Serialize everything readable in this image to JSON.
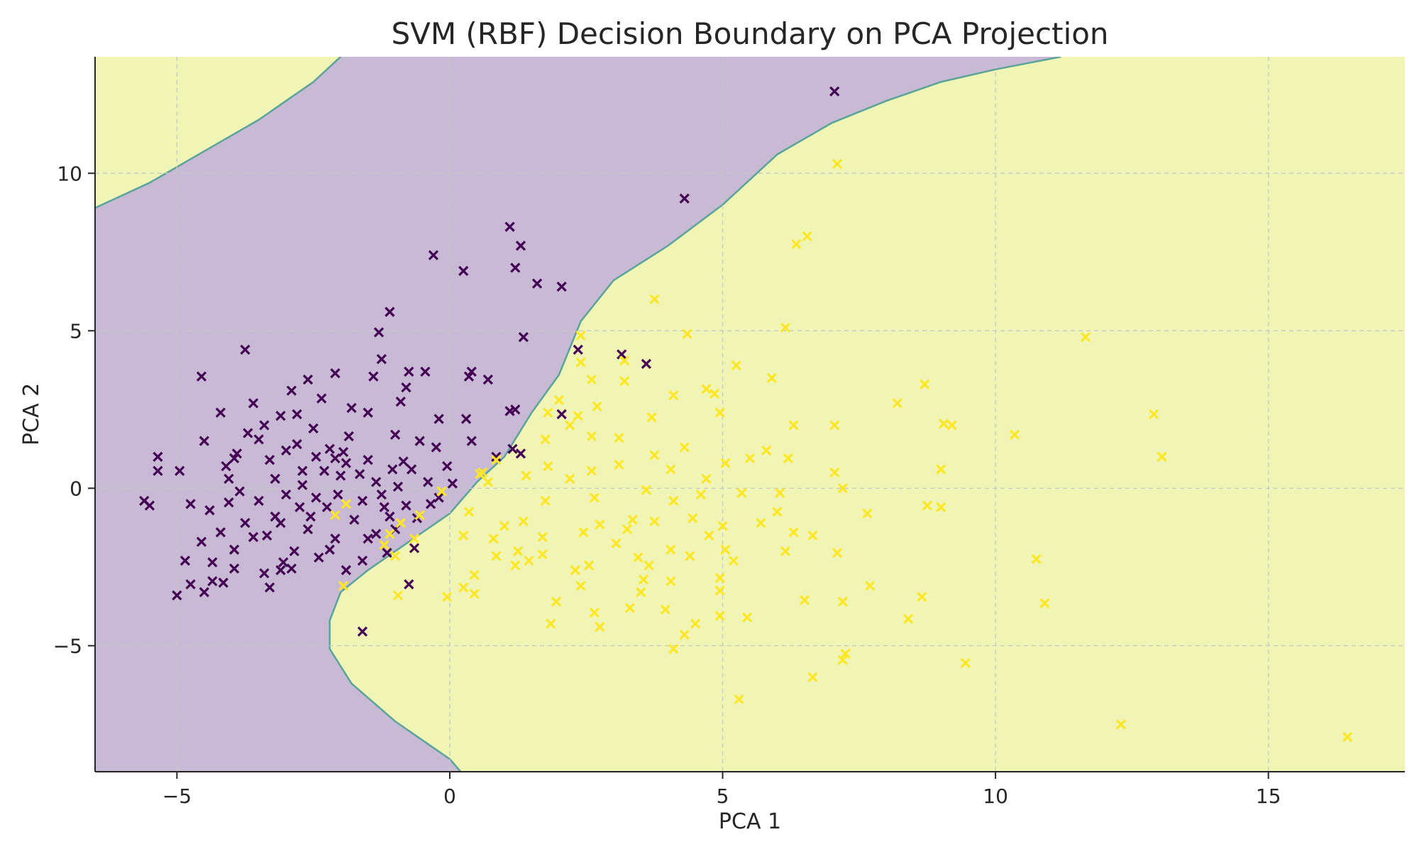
{
  "chart_data": {
    "type": "scatter",
    "title": "SVM (RBF) Decision Boundary on PCA Projection",
    "xlabel": "PCA 1",
    "ylabel": "PCA 2",
    "xlim": [
      -6.5,
      17.5
    ],
    "ylim": [
      -9.0,
      13.7
    ],
    "xticks": [
      -5,
      0,
      5,
      10,
      15
    ],
    "yticks": [
      -5,
      0,
      5,
      10
    ],
    "xtick_labels": [
      "−5",
      "0",
      "5",
      "10",
      "15"
    ],
    "ytick_labels": [
      "−5",
      "0",
      "5",
      "10"
    ],
    "grid": true,
    "marker": "x",
    "colors": {
      "class_0_marker": "#440154",
      "class_1_marker": "#fde725",
      "class_0_region": "#c8b9d4",
      "class_1_region": "#f0f5b6",
      "boundary": "#5aa39a",
      "grid": "#c8c8c8",
      "axes": "#262626"
    },
    "decision_boundary": {
      "upper_left_curve": [
        [
          -6.5,
          8.9
        ],
        [
          -5.5,
          9.7
        ],
        [
          -4.5,
          10.7
        ],
        [
          -3.5,
          11.7
        ],
        [
          -2.5,
          12.9
        ],
        [
          -2.0,
          13.7
        ]
      ],
      "main_curve": [
        [
          11.2,
          13.7
        ],
        [
          10.0,
          13.3
        ],
        [
          9.0,
          12.9
        ],
        [
          8.0,
          12.3
        ],
        [
          7.0,
          11.6
        ],
        [
          6.0,
          10.6
        ],
        [
          5.0,
          9.0
        ],
        [
          4.0,
          7.7
        ],
        [
          3.0,
          6.6
        ],
        [
          2.4,
          5.3
        ],
        [
          2.0,
          3.6
        ],
        [
          1.5,
          2.4
        ],
        [
          1.0,
          1.0
        ],
        [
          0.5,
          0.2
        ],
        [
          0.0,
          -0.8
        ],
        [
          -0.5,
          -1.4
        ],
        [
          -1.5,
          -2.6
        ],
        [
          -2.0,
          -3.3
        ],
        [
          -2.2,
          -4.2
        ],
        [
          -2.2,
          -5.1
        ],
        [
          -1.8,
          -6.2
        ],
        [
          -1.0,
          -7.4
        ],
        [
          0.0,
          -8.6
        ],
        [
          0.2,
          -9.0
        ]
      ]
    },
    "series": [
      {
        "class": 0,
        "points": [
          [
            7.05,
            12.6
          ],
          [
            4.3,
            9.2
          ],
          [
            1.1,
            8.3
          ],
          [
            1.3,
            7.7
          ],
          [
            -0.3,
            7.4
          ],
          [
            0.25,
            6.9
          ],
          [
            1.2,
            7.0
          ],
          [
            1.6,
            6.5
          ],
          [
            2.05,
            6.4
          ],
          [
            -1.1,
            5.6
          ],
          [
            -1.3,
            4.95
          ],
          [
            1.35,
            4.8
          ],
          [
            -3.75,
            4.4
          ],
          [
            2.35,
            4.4
          ],
          [
            3.15,
            4.25
          ],
          [
            3.6,
            3.95
          ],
          [
            -1.25,
            4.1
          ],
          [
            -4.55,
            3.55
          ],
          [
            -2.6,
            3.45
          ],
          [
            -2.1,
            3.65
          ],
          [
            -1.4,
            3.55
          ],
          [
            -0.75,
            3.7
          ],
          [
            -0.45,
            3.7
          ],
          [
            0.4,
            3.7
          ],
          [
            0.7,
            3.45
          ],
          [
            0.35,
            3.55
          ],
          [
            -2.9,
            3.1
          ],
          [
            -3.6,
            2.7
          ],
          [
            -3.1,
            2.3
          ],
          [
            -4.2,
            2.4
          ],
          [
            -1.8,
            2.55
          ],
          [
            -0.9,
            2.75
          ],
          [
            -0.8,
            3.2
          ],
          [
            1.1,
            2.45
          ],
          [
            1.2,
            2.5
          ],
          [
            2.05,
            2.35
          ],
          [
            0.3,
            2.2
          ],
          [
            -0.2,
            2.2
          ],
          [
            -1.5,
            2.4
          ],
          [
            -2.5,
            1.9
          ],
          [
            -3.4,
            2.0
          ],
          [
            -4.5,
            1.5
          ],
          [
            -3.9,
            1.1
          ],
          [
            -5.35,
            1.0
          ],
          [
            -5.35,
            0.55
          ],
          [
            -4.95,
            0.55
          ],
          [
            -4.1,
            0.7
          ],
          [
            -3.2,
            0.3
          ],
          [
            -2.7,
            0.1
          ],
          [
            -2.3,
            0.55
          ],
          [
            -1.9,
            0.8
          ],
          [
            -1.5,
            0.9
          ],
          [
            -1.05,
            0.6
          ],
          [
            -0.7,
            0.6
          ],
          [
            -0.4,
            0.2
          ],
          [
            0.05,
            0.15
          ],
          [
            0.4,
            1.5
          ],
          [
            0.85,
            1.0
          ],
          [
            1.3,
            1.1
          ],
          [
            1.15,
            1.25
          ],
          [
            -2.2,
            1.25
          ],
          [
            -2.8,
            1.4
          ],
          [
            -3.3,
            0.9
          ],
          [
            -3.5,
            -0.4
          ],
          [
            -3.2,
            -0.9
          ],
          [
            -2.75,
            -0.6
          ],
          [
            -2.45,
            -0.3
          ],
          [
            -2.05,
            -0.2
          ],
          [
            -1.6,
            -0.4
          ],
          [
            -1.2,
            -0.6
          ],
          [
            -0.8,
            -0.55
          ],
          [
            -0.35,
            -0.5
          ],
          [
            -4.4,
            -0.7
          ],
          [
            -4.75,
            -0.5
          ],
          [
            -4.2,
            -1.4
          ],
          [
            -3.75,
            -1.1
          ],
          [
            -3.35,
            -1.5
          ],
          [
            -2.6,
            -1.3
          ],
          [
            -2.1,
            -1.6
          ],
          [
            -1.5,
            -1.6
          ],
          [
            -1.0,
            -1.3
          ],
          [
            -0.65,
            -1.9
          ],
          [
            -4.85,
            -2.3
          ],
          [
            -4.35,
            -2.35
          ],
          [
            -3.95,
            -2.55
          ],
          [
            -3.4,
            -2.7
          ],
          [
            -2.9,
            -2.55
          ],
          [
            -2.2,
            -1.95
          ],
          [
            -1.6,
            -2.3
          ],
          [
            -1.15,
            -2.05
          ],
          [
            -3.3,
            -3.15
          ],
          [
            -4.75,
            -3.05
          ],
          [
            -4.5,
            -3.3
          ],
          [
            -4.35,
            -2.95
          ],
          [
            -4.15,
            -3.0
          ],
          [
            -5.0,
            -3.4
          ],
          [
            -3.1,
            -2.6
          ],
          [
            -2.85,
            -2.0
          ],
          [
            -0.75,
            -3.05
          ],
          [
            -1.6,
            -4.55
          ],
          [
            -5.5,
            -0.55
          ],
          [
            -5.6,
            -0.4
          ],
          [
            -3.7,
            1.75
          ],
          [
            -3.0,
            1.2
          ],
          [
            -2.45,
            1.0
          ],
          [
            -2.0,
            0.4
          ],
          [
            -1.35,
            0.2
          ],
          [
            -0.95,
            0.05
          ],
          [
            -1.85,
            1.65
          ],
          [
            -1.0,
            1.7
          ],
          [
            -0.55,
            1.5
          ],
          [
            -0.25,
            1.3
          ],
          [
            -0.05,
            0.7
          ],
          [
            -2.55,
            -0.9
          ],
          [
            -3.0,
            -0.2
          ],
          [
            -3.85,
            -0.1
          ],
          [
            -4.05,
            0.3
          ],
          [
            -1.75,
            -1.0
          ],
          [
            -1.25,
            -0.2
          ],
          [
            -0.6,
            -0.95
          ],
          [
            -4.55,
            -1.7
          ],
          [
            -3.95,
            -1.95
          ],
          [
            -3.05,
            -2.35
          ],
          [
            -2.4,
            -2.2
          ],
          [
            -1.9,
            -2.6
          ],
          [
            -3.6,
            -1.55
          ],
          [
            -2.35,
            2.85
          ],
          [
            -2.8,
            2.35
          ],
          [
            -3.95,
            0.95
          ],
          [
            -3.5,
            1.55
          ],
          [
            -2.1,
            0.95
          ],
          [
            -1.65,
            0.45
          ],
          [
            -1.1,
            -0.9
          ],
          [
            -0.2,
            -0.3
          ],
          [
            -4.05,
            -0.45
          ],
          [
            -3.1,
            -1.1
          ],
          [
            -2.7,
            0.55
          ],
          [
            -2.25,
            -0.6
          ],
          [
            -1.95,
            1.15
          ],
          [
            -1.35,
            -1.45
          ],
          [
            -0.85,
            0.85
          ]
        ]
      },
      {
        "class": 1,
        "points": [
          [
            7.1,
            10.3
          ],
          [
            6.55,
            8.0
          ],
          [
            6.35,
            7.75
          ],
          [
            3.75,
            6.0
          ],
          [
            6.15,
            5.1
          ],
          [
            4.35,
            4.9
          ],
          [
            2.4,
            4.85
          ],
          [
            11.65,
            4.8
          ],
          [
            2.4,
            4.0
          ],
          [
            3.2,
            4.05
          ],
          [
            5.25,
            3.9
          ],
          [
            5.9,
            3.5
          ],
          [
            8.7,
            3.3
          ],
          [
            4.7,
            3.15
          ],
          [
            4.85,
            3.0
          ],
          [
            2.6,
            3.45
          ],
          [
            3.2,
            3.4
          ],
          [
            4.1,
            2.95
          ],
          [
            2.0,
            2.8
          ],
          [
            2.7,
            2.6
          ],
          [
            3.7,
            2.25
          ],
          [
            8.2,
            2.7
          ],
          [
            12.9,
            2.35
          ],
          [
            1.8,
            2.4
          ],
          [
            2.35,
            2.3
          ],
          [
            4.95,
            2.4
          ],
          [
            6.3,
            2.0
          ],
          [
            7.05,
            2.0
          ],
          [
            9.05,
            2.05
          ],
          [
            9.2,
            2.0
          ],
          [
            10.35,
            1.7
          ],
          [
            2.2,
            2.0
          ],
          [
            3.1,
            1.6
          ],
          [
            1.75,
            1.55
          ],
          [
            2.6,
            1.65
          ],
          [
            3.75,
            1.05
          ],
          [
            4.3,
            1.3
          ],
          [
            6.2,
            0.95
          ],
          [
            5.05,
            0.8
          ],
          [
            13.05,
            1.0
          ],
          [
            9.0,
            0.6
          ],
          [
            7.05,
            0.5
          ],
          [
            7.2,
            0.0
          ],
          [
            1.8,
            0.7
          ],
          [
            0.85,
            0.9
          ],
          [
            2.6,
            0.55
          ],
          [
            3.1,
            0.75
          ],
          [
            4.05,
            0.6
          ],
          [
            5.5,
            0.95
          ],
          [
            1.4,
            0.4
          ],
          [
            0.6,
            0.5
          ],
          [
            2.2,
            0.3
          ],
          [
            3.6,
            -0.05
          ],
          [
            4.6,
            -0.2
          ],
          [
            5.35,
            -0.15
          ],
          [
            6.05,
            -0.15
          ],
          [
            2.65,
            -0.3
          ],
          [
            4.1,
            -0.4
          ],
          [
            1.75,
            -0.4
          ],
          [
            6.0,
            -0.75
          ],
          [
            7.65,
            -0.8
          ],
          [
            8.75,
            -0.55
          ],
          [
            9.0,
            -0.6
          ],
          [
            0.35,
            -0.75
          ],
          [
            1.35,
            -1.05
          ],
          [
            2.75,
            -1.15
          ],
          [
            3.25,
            -1.3
          ],
          [
            3.75,
            -1.05
          ],
          [
            4.45,
            -0.95
          ],
          [
            5.0,
            -1.2
          ],
          [
            6.3,
            -1.4
          ],
          [
            6.65,
            -1.5
          ],
          [
            5.7,
            -1.1
          ],
          [
            0.25,
            -1.5
          ],
          [
            0.8,
            -1.6
          ],
          [
            1.7,
            -1.55
          ],
          [
            2.45,
            -1.4
          ],
          [
            3.05,
            -1.75
          ],
          [
            3.45,
            -2.2
          ],
          [
            4.05,
            -1.95
          ],
          [
            4.75,
            -1.5
          ],
          [
            5.05,
            -1.95
          ],
          [
            6.15,
            -2.0
          ],
          [
            7.1,
            -2.05
          ],
          [
            1.25,
            -2.0
          ],
          [
            0.85,
            -2.15
          ],
          [
            1.7,
            -2.1
          ],
          [
            2.3,
            -2.6
          ],
          [
            3.65,
            -2.45
          ],
          [
            4.4,
            -2.15
          ],
          [
            5.2,
            -2.3
          ],
          [
            10.75,
            -2.25
          ],
          [
            0.45,
            -2.75
          ],
          [
            1.2,
            -2.45
          ],
          [
            2.55,
            -2.45
          ],
          [
            3.55,
            -2.9
          ],
          [
            4.05,
            -2.95
          ],
          [
            4.95,
            -2.85
          ],
          [
            0.25,
            -3.15
          ],
          [
            0.45,
            -3.35
          ],
          [
            2.4,
            -3.1
          ],
          [
            3.5,
            -3.3
          ],
          [
            4.95,
            -3.25
          ],
          [
            6.5,
            -3.55
          ],
          [
            7.2,
            -3.6
          ],
          [
            7.7,
            -3.1
          ],
          [
            8.65,
            -3.45
          ],
          [
            10.9,
            -3.65
          ],
          [
            -0.95,
            -3.4
          ],
          [
            -1.95,
            -3.1
          ],
          [
            -0.05,
            -3.45
          ],
          [
            1.95,
            -3.6
          ],
          [
            2.65,
            -3.95
          ],
          [
            3.3,
            -3.8
          ],
          [
            3.95,
            -3.85
          ],
          [
            4.95,
            -4.05
          ],
          [
            5.45,
            -4.1
          ],
          [
            8.4,
            -4.15
          ],
          [
            1.85,
            -4.3
          ],
          [
            2.75,
            -4.4
          ],
          [
            4.3,
            -4.65
          ],
          [
            4.5,
            -4.3
          ],
          [
            4.1,
            -5.1
          ],
          [
            7.25,
            -5.25
          ],
          [
            7.2,
            -5.45
          ],
          [
            9.45,
            -5.55
          ],
          [
            6.65,
            -6.0
          ],
          [
            5.3,
            -6.7
          ],
          [
            12.3,
            -7.5
          ],
          [
            16.45,
            -7.9
          ],
          [
            0.55,
            0.45
          ],
          [
            0.7,
            0.2
          ],
          [
            -0.9,
            -1.1
          ],
          [
            -1.1,
            -1.45
          ],
          [
            -0.55,
            -0.85
          ],
          [
            -1.9,
            -0.5
          ],
          [
            -2.1,
            -0.85
          ],
          [
            -0.15,
            -0.1
          ],
          [
            1.0,
            -1.2
          ],
          [
            1.45,
            -2.3
          ],
          [
            3.35,
            -1.0
          ],
          [
            -1.0,
            -2.15
          ],
          [
            -0.65,
            -1.6
          ],
          [
            -1.2,
            -1.8
          ],
          [
            5.8,
            1.2
          ],
          [
            4.7,
            0.3
          ]
        ]
      }
    ]
  }
}
